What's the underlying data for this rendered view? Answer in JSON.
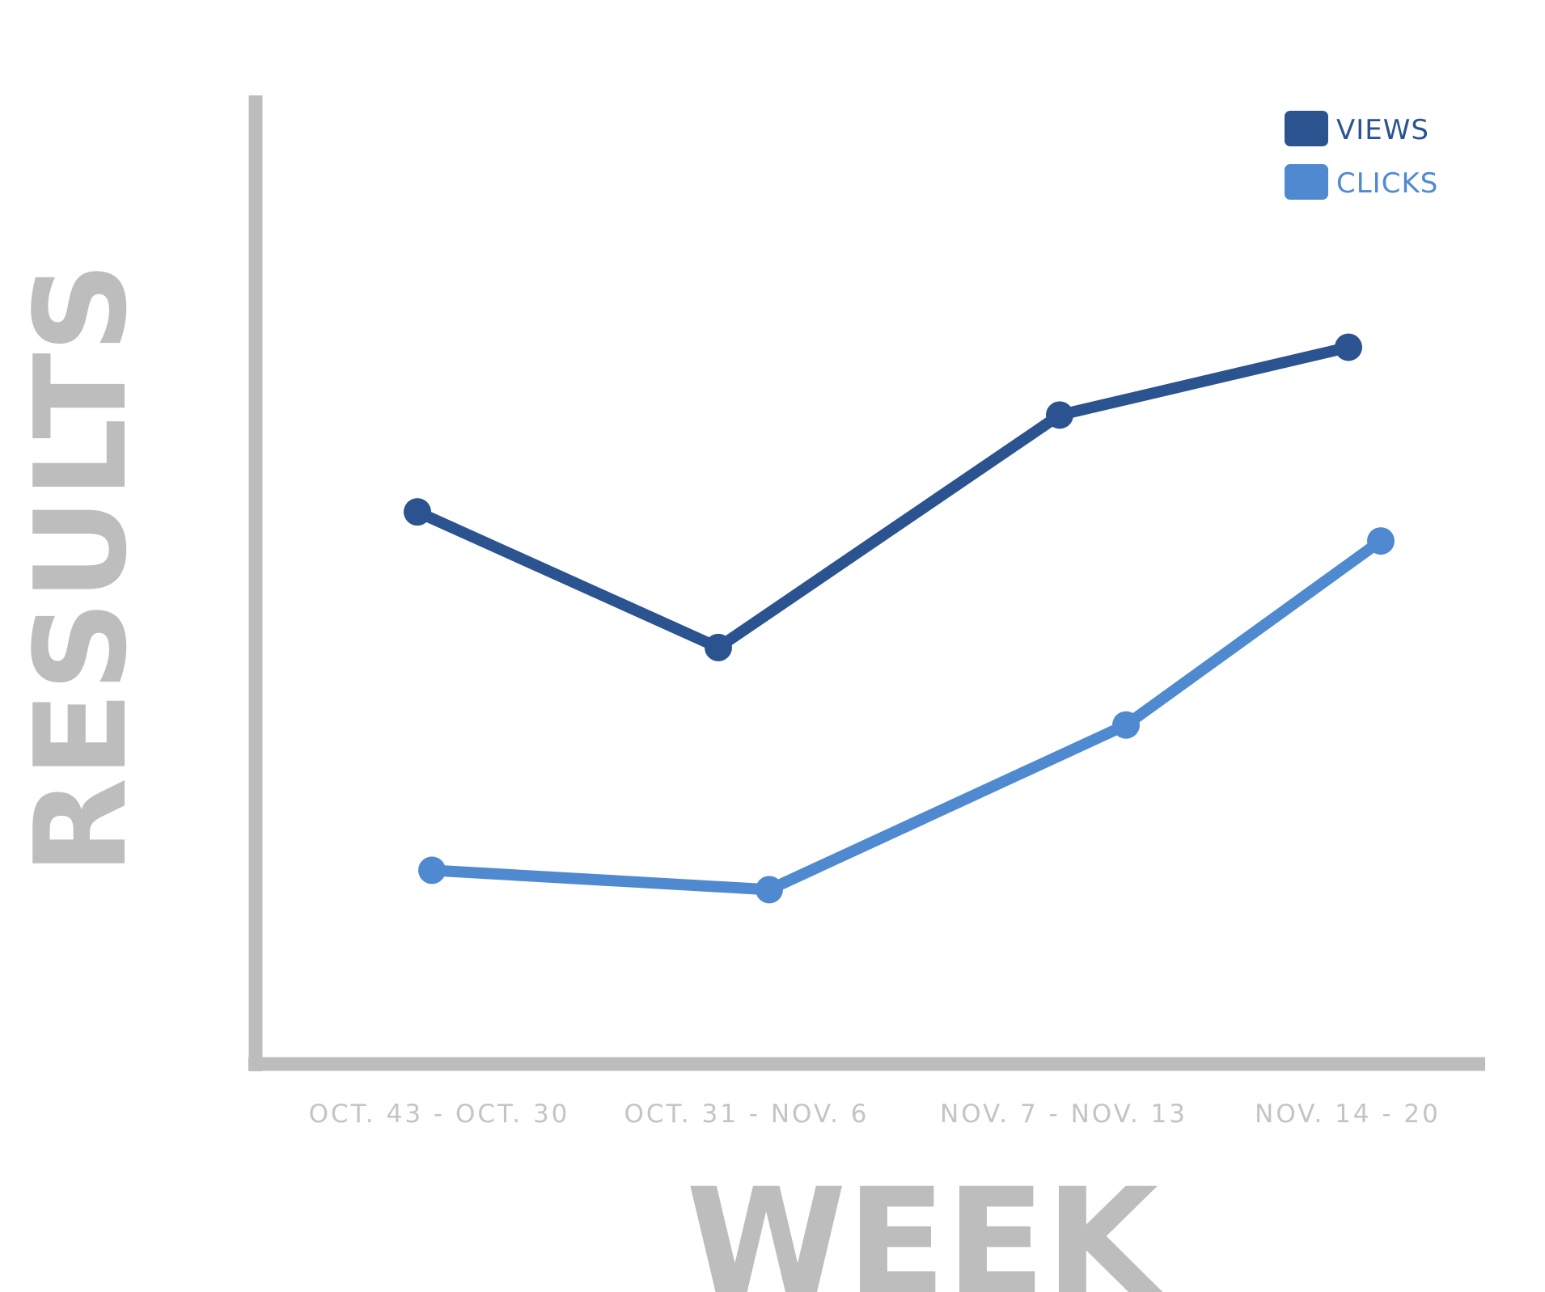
{
  "chart_data": {
    "type": "line",
    "xlabel": "WEEK",
    "ylabel": "RESULTS",
    "categories": [
      "OCT. 43 - OCT. 30",
      "OCT. 31 - NOV. 6",
      "NOV. 7 - NOV. 13",
      "NOV. 14 - 20"
    ],
    "ylim": [
      0,
      100
    ],
    "grid": false,
    "legend_position": "top-right",
    "series": [
      {
        "name": "VIEWS",
        "color": "#2a538f",
        "points": [
          {
            "x": "OCT. 43 - OCT. 30",
            "y": 57
          },
          {
            "x": "OCT. 31 - NOV. 6",
            "y": 43
          },
          {
            "x": "NOV. 7 - NOV. 13",
            "y": 67
          },
          {
            "x": "NOV. 14 - 20",
            "y": 74
          }
        ]
      },
      {
        "name": "CLICKS",
        "color": "#4f8ad0",
        "points": [
          {
            "x": "OCT. 43 - OCT. 30",
            "y": 20
          },
          {
            "x": "OCT. 31 - NOV. 6",
            "y": 18
          },
          {
            "x": "NOV. 7 - NOV. 13",
            "y": 35
          },
          {
            "x": "NOV. 14 - 20",
            "y": 54
          }
        ]
      }
    ]
  },
  "axis_color": "#bdbdbd"
}
